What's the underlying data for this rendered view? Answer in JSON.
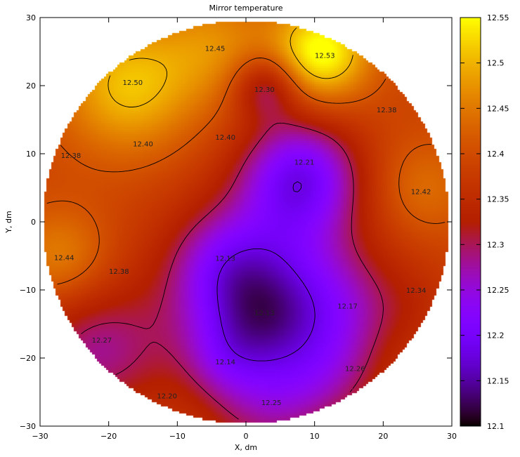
{
  "chart_data": {
    "type": "heatmap",
    "title": "Mirror temperature",
    "xlabel": "X, dm",
    "ylabel": "Y, dm",
    "xlim": [
      -30,
      30
    ],
    "ylim": [
      -30,
      30
    ],
    "xticks": [
      "−30",
      "−20",
      "−10",
      "0",
      "10",
      "20",
      "30"
    ],
    "yticks": [
      "−30",
      "−20",
      "−10",
      "0",
      "10",
      "20",
      "30"
    ],
    "colorbar": {
      "range": [
        12.1,
        12.55
      ],
      "ticks": [
        "12.1",
        "12.15",
        "12.2",
        "12.25",
        "12.3",
        "12.35",
        "12.4",
        "12.45",
        "12.5",
        "12.55"
      ],
      "colormap": "black-purple-red-orange-yellow"
    },
    "mirror_radius_dm": 29.5,
    "contour_levels": [
      12.18,
      12.3,
      12.41,
      12.5
    ],
    "labels": [
      {
        "text": "12.45",
        "x": -4.5,
        "y": 25.5
      },
      {
        "text": "12.53",
        "x": 11.5,
        "y": 24.5
      },
      {
        "text": "12.50",
        "x": -16.5,
        "y": 20.5
      },
      {
        "text": "12.30",
        "x": 2.7,
        "y": 19.5
      },
      {
        "text": "12.38",
        "x": 20.5,
        "y": 16.5
      },
      {
        "text": "12.40",
        "x": -15,
        "y": 11.5
      },
      {
        "text": "12.40",
        "x": -3,
        "y": 12.5
      },
      {
        "text": "12.38",
        "x": -25.5,
        "y": 9.8
      },
      {
        "text": "12.21",
        "x": 8.5,
        "y": 8.8
      },
      {
        "text": "12.42",
        "x": 25.5,
        "y": 4.5
      },
      {
        "text": "12.44",
        "x": -26.5,
        "y": -5.2
      },
      {
        "text": "12.13",
        "x": -3,
        "y": -5.3
      },
      {
        "text": "12.38",
        "x": -18.5,
        "y": -7.2
      },
      {
        "text": "12.34",
        "x": 24.8,
        "y": -10
      },
      {
        "text": "12.17",
        "x": 14.8,
        "y": -12.3
      },
      {
        "text": "12.13",
        "x": 2.7,
        "y": -13.3
      },
      {
        "text": "12.27",
        "x": -21,
        "y": -17.3
      },
      {
        "text": "12.14",
        "x": -3,
        "y": -20.5
      },
      {
        "text": "12.26",
        "x": 15.9,
        "y": -21.5
      },
      {
        "text": "12.20",
        "x": -11.5,
        "y": -25.5
      },
      {
        "text": "12.25",
        "x": 3.7,
        "y": -26.5
      }
    ]
  }
}
